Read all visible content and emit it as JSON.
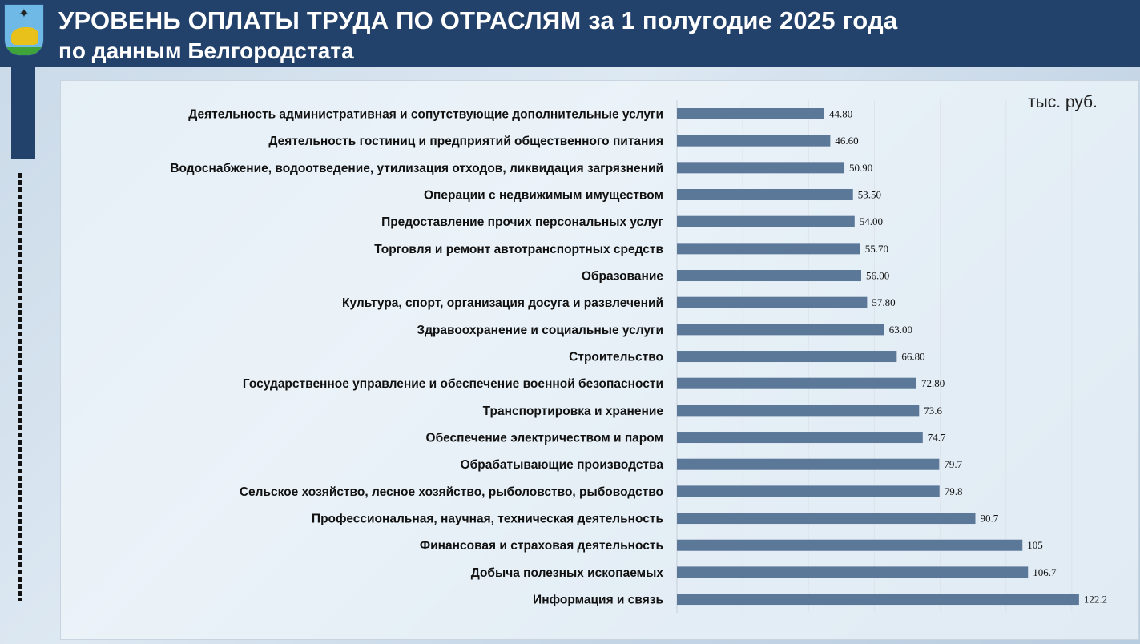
{
  "header": {
    "title_line1": "УРОВЕНЬ ОПЛАТЫ ТРУДА ПО ОТРАСЛЯМ за 1 полугодие 2025 года",
    "title_line2": "по данным Белгородстата"
  },
  "chart_data": {
    "type": "bar",
    "orientation": "horizontal",
    "title": "УРОВЕНЬ ОПЛАТЫ ТРУДА ПО ОТРАСЛЯМ за 1 полугодие 2025 года",
    "unit": "тыс. руб.",
    "xlim": [
      0,
      130
    ],
    "bar_color": "#5b7899",
    "categories": [
      "Деятельность административная и сопутствующие дополнительные услуги",
      "Деятельность гостиниц и предприятий общественного питания",
      "Водоснабжение, водоотведение, утилизация отходов, ликвидация загрязнений",
      "Операции с недвижимым имуществом",
      "Предоставление прочих персональных услуг",
      "Торговля и ремонт автотранспортных средств",
      "Образование",
      "Культура, спорт, организация досуга и развлечений",
      "Здравоохранение и социальные услуги",
      "Строительство",
      "Государственное управление и обеспечение военной безопасности",
      "Транспортировка и хранение",
      "Обеспечение электричеством и паром",
      "Обрабатывающие производства",
      "Сельское хозяйство, лесное хозяйство, рыболовство, рыбоводство",
      "Профессиональная, научная, техническая деятельность",
      "Финансовая и страховая деятельность",
      "Добыча полезных ископаемых",
      "Информация и связь"
    ],
    "values": [
      44.8,
      46.6,
      50.9,
      53.5,
      54.0,
      55.7,
      56.0,
      57.8,
      63.0,
      66.8,
      72.8,
      73.6,
      74.7,
      79.7,
      79.8,
      90.7,
      105,
      106.7,
      122.2
    ],
    "value_labels": [
      "44.80",
      "46.60",
      "50.90",
      "53.50",
      "54.00",
      "55.70",
      "56.00",
      "57.80",
      "63.00",
      "66.80",
      "72.80",
      "73.6",
      "74.7",
      "79.7",
      "79.8",
      "90.7",
      "105",
      "106.7",
      "122.2"
    ]
  }
}
